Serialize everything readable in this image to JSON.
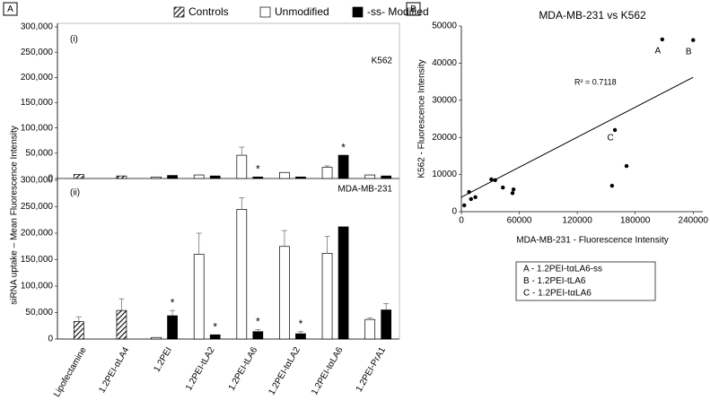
{
  "figure": {
    "panels": [
      "A",
      "B"
    ],
    "ylabel": "siRNA uptake – Mean Fluorescence Intensity"
  },
  "chart_data": [
    {
      "type": "bar",
      "panel_label": "(i)",
      "subtitle": "K562",
      "ylim": [
        0,
        300000
      ],
      "yticks": [
        0,
        {
          "value": 50000,
          "label": "50,000"
        },
        {
          "value": 100000,
          "label": "100,000"
        },
        {
          "value": 150000,
          "label": "150,000"
        },
        {
          "value": 200000,
          "label": "200,000"
        },
        {
          "value": 250000,
          "label": "250,000"
        },
        {
          "value": 300000,
          "label": "300,000"
        }
      ],
      "series": [
        {
          "name": "Controls",
          "color": "#000000",
          "pattern": "hatch",
          "values": [
            8000,
            5000,
            null,
            null,
            null,
            null,
            null,
            null
          ],
          "errors": [
            null,
            null,
            null,
            null,
            null,
            null,
            null,
            null
          ],
          "significance": [
            null,
            null,
            null,
            null,
            null,
            null,
            null,
            null
          ]
        },
        {
          "name": "Unmodified",
          "color": "#ffffff",
          "values": [
            null,
            null,
            3000,
            7000,
            46000,
            12000,
            22000,
            7000
          ],
          "errors": [
            null,
            null,
            null,
            null,
            16000,
            null,
            3000,
            null
          ],
          "significance": [
            null,
            null,
            null,
            null,
            null,
            null,
            null,
            null
          ]
        },
        {
          "name": "-ss- Modified",
          "color": "#000000",
          "values": [
            null,
            null,
            6000,
            5000,
            3000,
            3000,
            46000,
            5000
          ],
          "errors": [
            null,
            null,
            null,
            null,
            null,
            null,
            null,
            null
          ],
          "significance": [
            null,
            null,
            null,
            null,
            "*",
            null,
            "*",
            null
          ]
        }
      ]
    },
    {
      "type": "bar",
      "panel_label": "(ii)",
      "subtitle": "MDA-MB-231",
      "categories": [
        "Lipofectamine",
        "1.2PEI-αLA4",
        "1.2PEI",
        "1.2PEI-tLA2",
        "1.2PEI-tLA6",
        "1.2PEI-tαLA2",
        "1.2PEI-tαLA6",
        "1.2PEI-PrA1"
      ],
      "ylim": [
        0,
        300000
      ],
      "yticks": [
        0,
        {
          "value": 50000,
          "label": "50,000"
        },
        {
          "value": 100000,
          "label": "100,000"
        },
        {
          "value": 150000,
          "label": "150,000"
        },
        {
          "value": 200000,
          "label": "200,000"
        },
        {
          "value": 250000,
          "label": "250,000"
        },
        {
          "value": 300000,
          "label": "300,000"
        }
      ],
      "series": [
        {
          "color": "#000000",
          "pattern": "hatch",
          "values": [
            33000,
            54000,
            null,
            null,
            null,
            null,
            null,
            null
          ],
          "errors": [
            9000,
            22000,
            null,
            null,
            null,
            null,
            null,
            null
          ],
          "significance": [
            null,
            null,
            null,
            null,
            null,
            null,
            null,
            null
          ]
        },
        {
          "color": "#ffffff",
          "values": [
            null,
            null,
            3000,
            160000,
            245000,
            175000,
            162000,
            37000
          ],
          "errors": [
            null,
            null,
            null,
            40000,
            22000,
            30000,
            32000,
            3000
          ],
          "significance": [
            null,
            null,
            null,
            null,
            null,
            null,
            null,
            null
          ]
        },
        {
          "color": "#000000",
          "values": [
            null,
            null,
            44000,
            8000,
            14000,
            10000,
            212000,
            55000
          ],
          "errors": [
            null,
            null,
            10000,
            null,
            4000,
            4000,
            null,
            12000
          ],
          "significance": [
            null,
            null,
            "*",
            "*",
            "*",
            "*",
            null,
            null
          ]
        }
      ]
    },
    {
      "type": "scatter",
      "title": "MDA-MB-231 vs K562",
      "xlabel": "MDA-MB-231 - Fluorescence Intensity",
      "ylabel": "K562 - Fluorescence Intensity",
      "x": [
        3000,
        8000,
        10000,
        14500,
        31000,
        35000,
        43000,
        53000,
        54000,
        156000,
        159000,
        171000,
        208000,
        240000
      ],
      "y": [
        1700,
        5300,
        3400,
        3900,
        8700,
        8500,
        6500,
        5000,
        6000,
        7000,
        22000,
        12300,
        46400,
        46200
      ],
      "point_labels": [
        null,
        null,
        null,
        null,
        null,
        null,
        null,
        null,
        null,
        null,
        "C",
        null,
        "A",
        "B"
      ],
      "color": "#000000",
      "xlim": [
        0,
        250000
      ],
      "xticks": [
        0,
        60000,
        120000,
        180000,
        240000
      ],
      "ylim": [
        0,
        50000
      ],
      "yticks": [
        0,
        10000,
        20000,
        30000,
        40000,
        50000
      ],
      "trendline": {
        "x": [
          0,
          240000
        ],
        "y": [
          3900,
          36200
        ]
      },
      "r2_label": "R² = 0.7118",
      "notes": [
        "A - 1.2PEI-tαLA6-ss",
        "B - 1.2PEI-tLA6",
        "C - 1.2PEI-tαLA6"
      ]
    }
  ]
}
